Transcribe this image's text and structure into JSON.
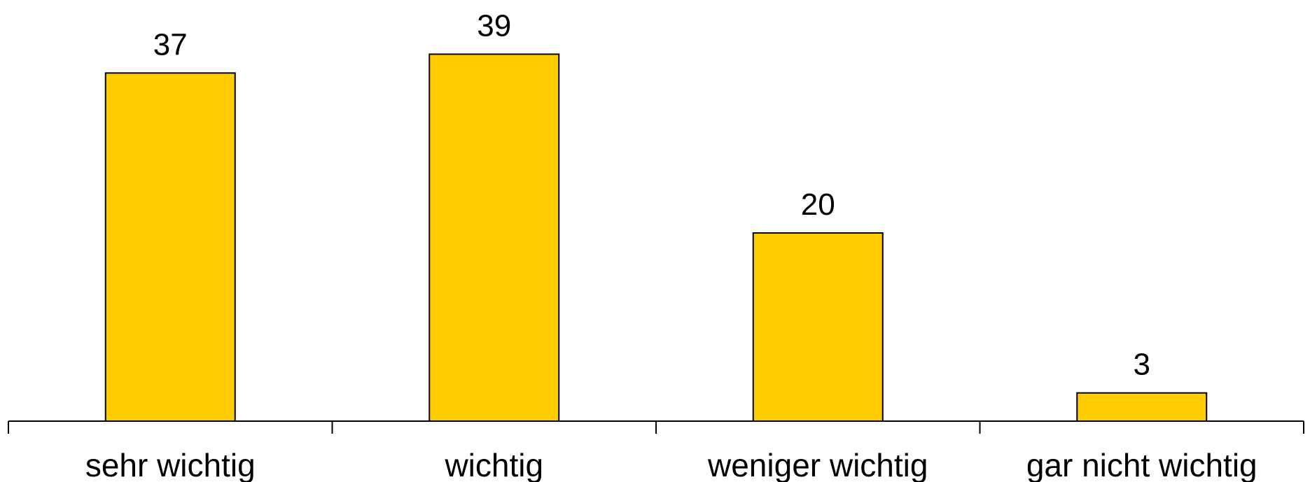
{
  "chart_data": {
    "type": "bar",
    "categories": [
      "sehr wichtig",
      "wichtig",
      "weniger wichtig",
      "gar nicht wichtig"
    ],
    "values": [
      37,
      39,
      20,
      3
    ],
    "data_labels": [
      "37",
      "39",
      "20",
      "3"
    ],
    "title": "",
    "xlabel": "",
    "ylabel": "",
    "ylim": [
      0,
      40
    ],
    "grid": false,
    "legend": "none",
    "bar_color": "#FFCC00",
    "outline_color": "#000000"
  }
}
